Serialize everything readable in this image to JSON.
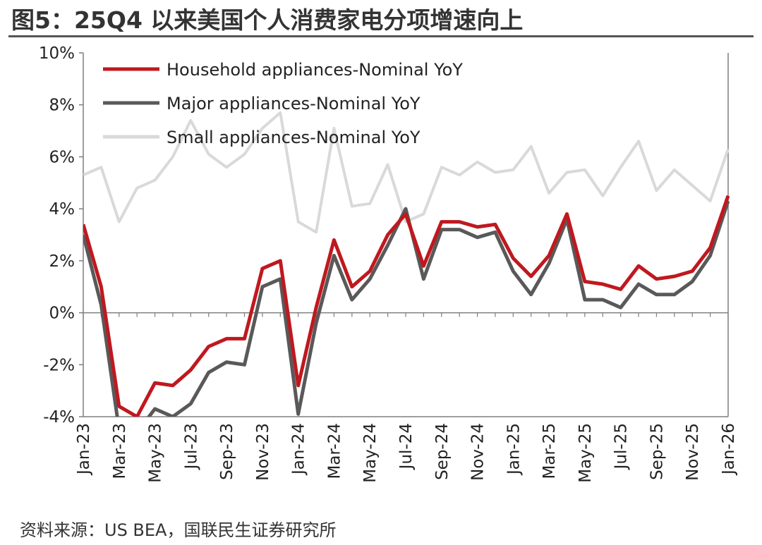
{
  "title": "图5：25Q4 以来美国个人消费家电分项增速向上",
  "source": "资料来源：US BEA，国联民生证券研究所",
  "chart_data": {
    "type": "line",
    "title": "图5：25Q4 以来美国个人消费家电分项增速向上",
    "xlabel": "",
    "ylabel": "",
    "ylim": [
      -4,
      10
    ],
    "yticks": [
      -4,
      -2,
      0,
      2,
      4,
      6,
      8,
      10
    ],
    "ytick_labels": [
      "-4%",
      "-2%",
      "0%",
      "2%",
      "4%",
      "6%",
      "8%",
      "10%"
    ],
    "legend_position": "top-left",
    "grid": false,
    "x": [
      "Jan-23",
      "Feb-23",
      "Mar-23",
      "Apr-23",
      "May-23",
      "Jun-23",
      "Jul-23",
      "Aug-23",
      "Sep-23",
      "Oct-23",
      "Nov-23",
      "Dec-23",
      "Jan-24",
      "Feb-24",
      "Mar-24",
      "Apr-24",
      "May-24",
      "Jun-24",
      "Jul-24",
      "Aug-24",
      "Sep-24",
      "Oct-24",
      "Nov-24",
      "Dec-24",
      "Jan-25",
      "Feb-25",
      "Mar-25",
      "Apr-25",
      "May-25",
      "Jun-25",
      "Jul-25",
      "Aug-25",
      "Sep-25",
      "Oct-25",
      "Nov-25",
      "Dec-25",
      "Jan-26"
    ],
    "xtick_labels": [
      "Jan-23",
      "Mar-23",
      "May-23",
      "Jul-23",
      "Sep-23",
      "Nov-23",
      "Jan-24",
      "Mar-24",
      "May-24",
      "Jul-24",
      "Sep-24",
      "Nov-24",
      "Jan-25",
      "Mar-25",
      "May-25",
      "Jul-25",
      "Sep-25",
      "Nov-25",
      "Jan-26"
    ],
    "series": [
      {
        "name": "Household appliances-Nominal YoY",
        "color": "#c0181f",
        "values": [
          3.4,
          1.0,
          -3.6,
          -4.0,
          -2.7,
          -2.8,
          -2.2,
          -1.3,
          -1.0,
          -1.0,
          1.7,
          2.0,
          -2.8,
          0.2,
          2.8,
          1.0,
          1.6,
          3.0,
          3.8,
          1.8,
          3.5,
          3.5,
          3.3,
          3.4,
          2.1,
          1.4,
          2.2,
          3.8,
          1.2,
          1.1,
          0.9,
          1.8,
          1.3,
          1.4,
          1.6,
          2.5,
          4.5
        ]
      },
      {
        "name": "Major appliances-Nominal YoY",
        "color": "#595959",
        "values": [
          3.0,
          0.3,
          -4.5,
          -4.6,
          -3.7,
          -4.0,
          -3.5,
          -2.3,
          -1.9,
          -2.0,
          1.0,
          1.3,
          -3.9,
          -0.4,
          2.2,
          0.5,
          1.3,
          2.6,
          4.0,
          1.3,
          3.2,
          3.2,
          2.9,
          3.1,
          1.6,
          0.7,
          1.9,
          3.6,
          0.5,
          0.5,
          0.2,
          1.1,
          0.7,
          0.7,
          1.2,
          2.2,
          4.3
        ]
      },
      {
        "name": "Small appliances-Nominal YoY",
        "color": "#d9d9d9",
        "values": [
          5.3,
          5.6,
          3.5,
          4.8,
          5.1,
          6.0,
          7.4,
          6.1,
          5.6,
          6.1,
          7.1,
          7.7,
          3.5,
          3.1,
          7.1,
          4.1,
          4.2,
          5.7,
          3.5,
          3.8,
          5.6,
          5.3,
          5.8,
          5.4,
          5.5,
          6.4,
          4.6,
          5.4,
          5.5,
          4.5,
          5.6,
          6.6,
          4.7,
          5.5,
          4.9,
          4.3,
          6.3
        ]
      }
    ]
  }
}
